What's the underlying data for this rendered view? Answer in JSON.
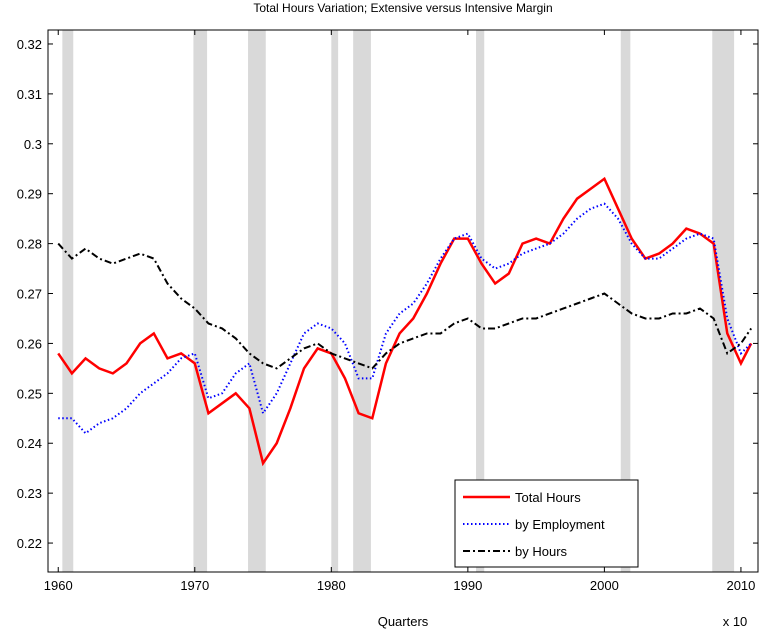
{
  "chart_data": {
    "type": "line",
    "title": "Total Hours Variation; Extensive versus Intensive Margin",
    "x_label": "Quarters",
    "x_multiplier_label": "x 10",
    "xlim": [
      1959.25,
      2011.25
    ],
    "xticks": [
      1960,
      1970,
      1980,
      1990,
      2000,
      2010
    ],
    "ylim": [
      0.2142,
      0.3228
    ],
    "yticks": [
      0.22,
      0.23,
      0.24,
      0.25,
      0.26,
      0.27,
      0.28,
      0.29,
      0.3,
      0.31,
      0.32
    ],
    "legend": "lower right",
    "recession_color": "#d9d9d9",
    "recessions": [
      [
        1960.3,
        1961.1
      ],
      [
        1969.9,
        1970.9
      ],
      [
        1973.9,
        1975.2
      ],
      [
        1980.0,
        1980.5
      ],
      [
        1981.6,
        1982.9
      ],
      [
        1990.6,
        1991.2
      ],
      [
        2001.2,
        2001.9
      ],
      [
        2007.9,
        2009.5
      ]
    ],
    "x": [
      1960,
      1961,
      1962,
      1963,
      1964,
      1965,
      1966,
      1967,
      1968,
      1969,
      1970,
      1971,
      1972,
      1973,
      1974,
      1975,
      1976,
      1977,
      1978,
      1979,
      1980,
      1981,
      1982,
      1983,
      1984,
      1985,
      1986,
      1987,
      1988,
      1989,
      1990,
      1991,
      1992,
      1993,
      1994,
      1995,
      1996,
      1997,
      1998,
      1999,
      2000,
      2001,
      2002,
      2003,
      2004,
      2005,
      2006,
      2007,
      2008,
      2009,
      2010,
      2010.75
    ],
    "series": [
      {
        "name": "Total Hours",
        "color": "#ff0000",
        "style": "solid",
        "values": [
          0.258,
          0.254,
          0.257,
          0.255,
          0.254,
          0.256,
          0.26,
          0.262,
          0.257,
          0.258,
          0.256,
          0.246,
          0.248,
          0.25,
          0.247,
          0.236,
          0.24,
          0.247,
          0.255,
          0.259,
          0.258,
          0.253,
          0.246,
          0.245,
          0.256,
          0.262,
          0.265,
          0.27,
          0.276,
          0.281,
          0.281,
          0.276,
          0.272,
          0.274,
          0.28,
          0.281,
          0.28,
          0.285,
          0.289,
          0.291,
          0.293,
          0.287,
          0.281,
          0.277,
          0.278,
          0.28,
          0.283,
          0.282,
          0.28,
          0.262,
          0.256,
          0.26
        ]
      },
      {
        "name": "by Employment",
        "color": "#0000ff",
        "style": "dotted",
        "values": [
          0.245,
          0.245,
          0.242,
          0.244,
          0.245,
          0.247,
          0.25,
          0.252,
          0.254,
          0.257,
          0.258,
          0.249,
          0.25,
          0.254,
          0.256,
          0.246,
          0.25,
          0.256,
          0.262,
          0.264,
          0.263,
          0.26,
          0.253,
          0.253,
          0.262,
          0.266,
          0.268,
          0.272,
          0.277,
          0.281,
          0.282,
          0.277,
          0.275,
          0.276,
          0.278,
          0.279,
          0.28,
          0.282,
          0.285,
          0.287,
          0.288,
          0.285,
          0.28,
          0.277,
          0.277,
          0.279,
          0.281,
          0.282,
          0.281,
          0.265,
          0.258,
          0.26
        ]
      },
      {
        "name": "by Hours",
        "color": "#000000",
        "style": "dashdot",
        "values": [
          0.28,
          0.277,
          0.279,
          0.277,
          0.276,
          0.277,
          0.278,
          0.277,
          0.272,
          0.269,
          0.267,
          0.264,
          0.263,
          0.261,
          0.258,
          0.256,
          0.255,
          0.257,
          0.259,
          0.26,
          0.258,
          0.257,
          0.256,
          0.255,
          0.258,
          0.26,
          0.261,
          0.262,
          0.262,
          0.264,
          0.265,
          0.263,
          0.263,
          0.264,
          0.265,
          0.265,
          0.266,
          0.267,
          0.268,
          0.269,
          0.27,
          0.268,
          0.266,
          0.265,
          0.265,
          0.266,
          0.266,
          0.267,
          0.265,
          0.258,
          0.26,
          0.263
        ]
      }
    ]
  }
}
